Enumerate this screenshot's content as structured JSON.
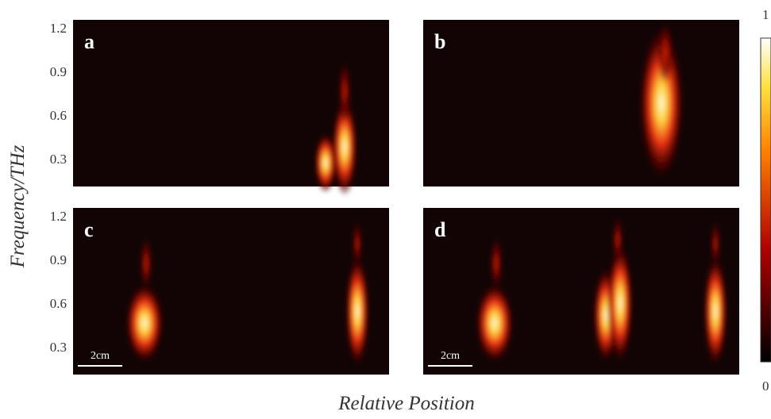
{
  "figure": {
    "y_axis_label": "Frequency/THz",
    "x_axis_label": "Relative Position",
    "yticks": [
      1.2,
      0.9,
      0.6,
      0.3
    ],
    "panels": [
      {
        "label": "a"
      },
      {
        "label": "b"
      },
      {
        "label": "c",
        "scale_bar": "2cm"
      },
      {
        "label": "d",
        "scale_bar": "2cm"
      }
    ],
    "colorbar": {
      "max": "1",
      "min": "0"
    }
  }
}
